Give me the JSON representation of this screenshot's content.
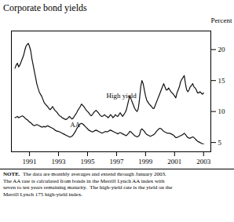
{
  "chart_data": {
    "type": "line",
    "title": "Corporate bond yields",
    "ylabel": "Percent",
    "caption_label": "NOTE.",
    "caption": "  The data are monthly averages and extend through January 2003.\nThe AA rate is calculated from bonds in the Merrill Lynch AA index with\nseven to ten years remaining maturity.  The high-yield rate is the yield on the\nMerrill Lynch 175 high-yield index.",
    "xlim": [
      1989.75,
      2003.5
    ],
    "xticks": [
      1991,
      1993,
      1995,
      1997,
      1999,
      2001,
      2003
    ],
    "ylim": [
      3.5,
      23.0
    ],
    "yticks": [
      5,
      10,
      15,
      20
    ],
    "annotations": [
      {
        "text": "High yield",
        "x": 1996.3,
        "y": 12.5
      },
      {
        "text": "AA",
        "x": 1993.8,
        "y": 7.8
      }
    ],
    "x": [
      1990.0,
      1990.083,
      1990.167,
      1990.25,
      1990.333,
      1990.417,
      1990.5,
      1990.583,
      1990.667,
      1990.75,
      1990.833,
      1990.917,
      1991.0,
      1991.083,
      1991.167,
      1991.25,
      1991.333,
      1991.417,
      1991.5,
      1991.583,
      1991.667,
      1991.75,
      1991.833,
      1991.917,
      1992.0,
      1992.083,
      1992.167,
      1992.25,
      1992.333,
      1992.417,
      1992.5,
      1992.583,
      1992.667,
      1992.75,
      1992.833,
      1992.917,
      1993.0,
      1993.083,
      1993.167,
      1993.25,
      1993.333,
      1993.417,
      1993.5,
      1993.583,
      1993.667,
      1993.75,
      1993.833,
      1993.917,
      1994.0,
      1994.083,
      1994.167,
      1994.25,
      1994.333,
      1994.417,
      1994.5,
      1994.583,
      1994.667,
      1994.75,
      1994.833,
      1994.917,
      1995.0,
      1995.083,
      1995.167,
      1995.25,
      1995.333,
      1995.417,
      1995.5,
      1995.583,
      1995.667,
      1995.75,
      1995.833,
      1995.917,
      1996.0,
      1996.083,
      1996.167,
      1996.25,
      1996.333,
      1996.417,
      1996.5,
      1996.583,
      1996.667,
      1996.75,
      1996.833,
      1996.917,
      1997.0,
      1997.083,
      1997.167,
      1997.25,
      1997.333,
      1997.417,
      1997.5,
      1997.583,
      1997.667,
      1997.75,
      1997.833,
      1997.917,
      1998.0,
      1998.083,
      1998.167,
      1998.25,
      1998.333,
      1998.417,
      1998.5,
      1998.583,
      1998.667,
      1998.75,
      1998.833,
      1998.917,
      1999.0,
      1999.083,
      1999.167,
      1999.25,
      1999.333,
      1999.417,
      1999.5,
      1999.583,
      1999.667,
      1999.75,
      1999.833,
      1999.917,
      2000.0,
      2000.083,
      2000.167,
      2000.25,
      2000.333,
      2000.417,
      2000.5,
      2000.583,
      2000.667,
      2000.75,
      2000.833,
      2000.917,
      2001.0,
      2001.083,
      2001.167,
      2001.25,
      2001.333,
      2001.417,
      2001.5,
      2001.583,
      2001.667,
      2001.75,
      2001.833,
      2001.917,
      2002.0,
      2002.083,
      2002.167,
      2002.25,
      2002.333,
      2002.417,
      2002.5,
      2002.583,
      2002.667,
      2002.75,
      2002.833,
      2002.917,
      2003.0
    ],
    "series": [
      {
        "name": "High yield",
        "color": "#111111",
        "values": [
          17.0,
          17.5,
          17.8,
          17.2,
          17.5,
          18.0,
          18.5,
          19.0,
          19.8,
          20.5,
          20.8,
          21.0,
          20.5,
          19.8,
          18.5,
          17.5,
          16.5,
          15.5,
          14.5,
          13.8,
          13.2,
          12.8,
          12.5,
          12.0,
          11.5,
          11.2,
          11.0,
          10.8,
          10.5,
          10.3,
          10.5,
          10.8,
          10.5,
          10.2,
          10.0,
          9.8,
          9.5,
          9.3,
          9.2,
          9.0,
          8.9,
          8.8,
          8.7,
          8.8,
          9.0,
          9.2,
          9.0,
          8.8,
          8.9,
          9.2,
          9.5,
          9.8,
          10.2,
          10.5,
          10.8,
          11.2,
          11.0,
          10.8,
          10.5,
          10.2,
          10.0,
          9.8,
          9.5,
          9.3,
          9.5,
          9.8,
          10.0,
          10.2,
          10.0,
          9.8,
          9.5,
          9.3,
          9.2,
          9.3,
          9.5,
          9.3,
          9.2,
          9.0,
          9.2,
          9.5,
          9.3,
          9.0,
          9.2,
          9.5,
          9.3,
          9.2,
          9.5,
          9.8,
          9.5,
          9.2,
          9.5,
          9.8,
          10.2,
          11.0,
          11.8,
          12.5,
          12.0,
          11.5,
          11.0,
          10.5,
          10.2,
          10.0,
          10.5,
          12.0,
          14.0,
          15.0,
          14.5,
          13.5,
          12.5,
          11.8,
          11.5,
          11.2,
          11.0,
          10.8,
          10.5,
          10.5,
          11.0,
          11.5,
          12.0,
          12.5,
          13.0,
          13.5,
          14.0,
          14.5,
          14.0,
          13.5,
          13.5,
          13.8,
          13.5,
          13.2,
          13.0,
          12.8,
          12.5,
          12.2,
          13.0,
          13.5,
          14.0,
          14.8,
          15.2,
          15.5,
          15.8,
          14.5,
          13.5,
          13.2,
          13.5,
          14.0,
          14.2,
          14.5,
          14.0,
          13.8,
          13.5,
          13.0,
          13.0,
          13.2,
          13.0,
          12.8,
          13.0
        ]
      },
      {
        "name": "AA",
        "color": "#111111",
        "values": [
          9.0,
          9.1,
          9.2,
          9.0,
          9.1,
          9.2,
          9.3,
          9.2,
          9.0,
          8.8,
          8.7,
          8.5,
          8.3,
          8.2,
          8.0,
          7.8,
          7.7,
          7.8,
          7.9,
          7.8,
          7.7,
          7.6,
          7.5,
          7.5,
          7.6,
          7.5,
          7.6,
          7.7,
          7.6,
          7.5,
          7.4,
          7.3,
          7.2,
          7.0,
          6.9,
          6.8,
          6.8,
          6.7,
          6.6,
          6.5,
          6.4,
          6.3,
          6.2,
          6.1,
          6.0,
          5.9,
          5.9,
          6.0,
          6.2,
          6.5,
          6.8,
          7.2,
          7.5,
          7.8,
          8.0,
          8.1,
          8.0,
          7.8,
          7.6,
          7.4,
          7.2,
          7.0,
          6.9,
          6.8,
          6.7,
          6.8,
          6.9,
          7.0,
          6.9,
          6.8,
          6.7,
          6.6,
          6.5,
          6.6,
          6.7,
          6.8,
          6.7,
          6.8,
          6.9,
          7.0,
          6.9,
          6.8,
          6.7,
          6.6,
          6.5,
          6.4,
          6.5,
          6.6,
          6.5,
          6.4,
          6.3,
          6.2,
          6.1,
          6.3,
          6.5,
          6.8,
          6.7,
          6.5,
          6.3,
          6.1,
          6.0,
          5.9,
          6.0,
          6.2,
          7.0,
          7.2,
          7.0,
          6.8,
          6.5,
          6.3,
          6.2,
          6.1,
          6.0,
          6.1,
          6.2,
          6.3,
          6.5,
          6.8,
          7.0,
          7.2,
          7.3,
          7.2,
          7.0,
          6.8,
          6.7,
          6.6,
          6.5,
          6.5,
          6.5,
          6.4,
          6.3,
          6.2,
          6.0,
          5.8,
          5.8,
          5.9,
          6.0,
          6.1,
          6.2,
          6.3,
          6.5,
          6.3,
          6.0,
          5.8,
          5.7,
          5.7,
          5.8,
          5.9,
          5.8,
          5.6,
          5.4,
          5.2,
          5.1,
          5.0,
          4.9,
          4.8,
          4.8
        ]
      }
    ]
  }
}
